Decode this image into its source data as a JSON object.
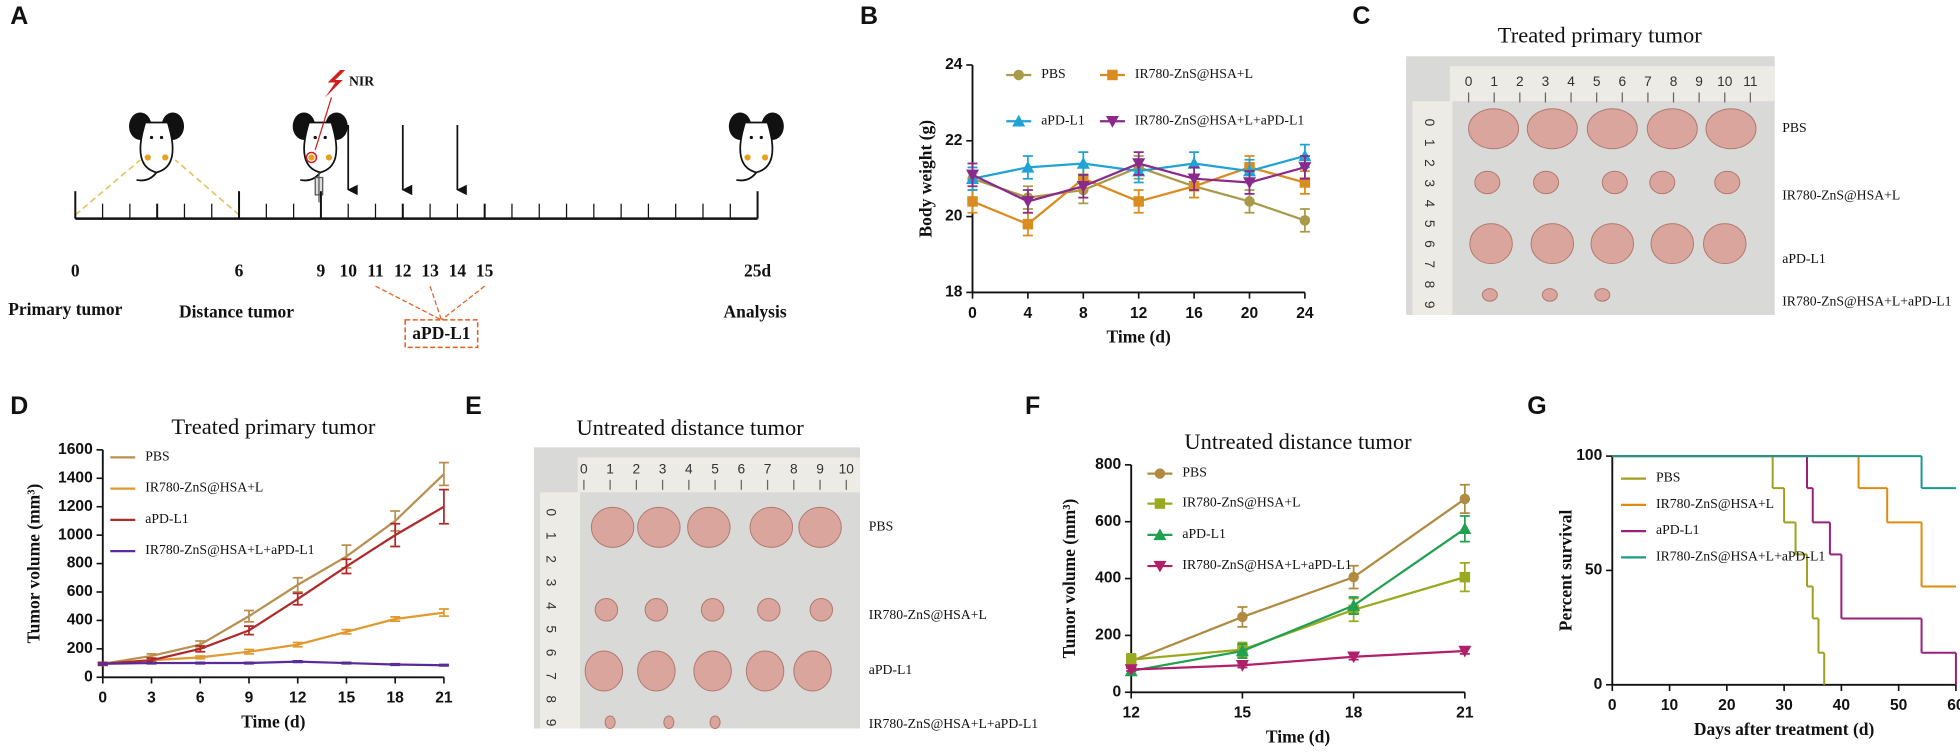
{
  "panel_labels": [
    "A",
    "B",
    "C",
    "D",
    "E",
    "F",
    "G"
  ],
  "diagram": {
    "nir": "NIR",
    "timeline_labels": [
      "0",
      "6",
      "9",
      "10",
      "11",
      "12",
      "13",
      "14",
      "15",
      "25d"
    ],
    "primary": "Primary tumor",
    "distance": "Distance tumor",
    "analysis": "Analysis",
    "treatment": "aPD-L1"
  },
  "photos": [
    {
      "title": "Treated  primary tumor",
      "row_labels": [
        "PBS",
        "IR780-ZnS@HSA+L",
        "aPD-L1",
        "IR780-ZnS@HSA+L+aPD-L1"
      ],
      "ruler_top": [
        "0",
        "1",
        "2",
        "3",
        "4",
        "5",
        "6",
        "7",
        "8",
        "9",
        "10",
        "11"
      ],
      "ruler_left": [
        "0",
        "1",
        "2",
        "3",
        "4",
        "5",
        "6",
        "7",
        "8",
        "9"
      ]
    },
    {
      "title": "Untreated distance tumor",
      "row_labels": [
        "PBS",
        "IR780-ZnS@HSA+L",
        "aPD-L1",
        "IR780-ZnS@HSA+L+aPD-L1"
      ],
      "ruler_top": [
        "0",
        "1",
        "2",
        "3",
        "4",
        "5",
        "6",
        "7",
        "8",
        "9",
        "10"
      ],
      "ruler_left": [
        "0",
        "1",
        "2",
        "3",
        "4",
        "5",
        "6",
        "7",
        "8",
        "9"
      ]
    }
  ],
  "chart_data": [
    {
      "type": "line",
      "xlabel": "Time (d)",
      "ylabel": "Body weight (g)",
      "xlim": [
        0,
        24
      ],
      "ylim": [
        18,
        24
      ],
      "xticks": [
        0,
        4,
        8,
        12,
        16,
        20,
        24
      ],
      "yticks": [
        18,
        20,
        22,
        24
      ],
      "x": [
        0,
        4,
        8,
        12,
        16,
        20,
        24
      ],
      "series": [
        {
          "name": "PBS",
          "color": "#a89a48",
          "marker": "circle",
          "values": [
            21.0,
            20.5,
            20.7,
            21.3,
            20.8,
            20.4,
            19.9
          ],
          "errors": [
            0.3,
            0.3,
            0.35,
            0.3,
            0.3,
            0.3,
            0.3
          ]
        },
        {
          "name": "IR780-ZnS@HSA+L",
          "color": "#d98c1f",
          "marker": "square",
          "values": [
            20.4,
            19.8,
            21.0,
            20.4,
            20.8,
            21.3,
            20.9
          ],
          "errors": [
            0.3,
            0.3,
            0.3,
            0.3,
            0.3,
            0.3,
            0.3
          ]
        },
        {
          "name": "aPD-L1",
          "color": "#1fa3d4",
          "marker": "triangle",
          "values": [
            21.0,
            21.3,
            21.4,
            21.2,
            21.4,
            21.2,
            21.6
          ],
          "errors": [
            0.3,
            0.3,
            0.3,
            0.3,
            0.3,
            0.3,
            0.3
          ]
        },
        {
          "name": "IR780-ZnS@HSA+L+aPD-L1",
          "color": "#8a2a8a",
          "marker": "triangle-down",
          "values": [
            21.1,
            20.4,
            20.8,
            21.4,
            21.0,
            20.9,
            21.3
          ],
          "errors": [
            0.3,
            0.3,
            0.3,
            0.3,
            0.3,
            0.3,
            0.3
          ]
        }
      ]
    },
    {
      "type": "line",
      "title": "Treated  primary tumor",
      "xlabel": "Time (d)",
      "ylabel": "Tumor volume (mm³)",
      "xlim": [
        0,
        21
      ],
      "ylim": [
        0,
        1600
      ],
      "xticks": [
        0,
        3,
        6,
        9,
        12,
        15,
        18,
        21
      ],
      "yticks": [
        0,
        200,
        400,
        600,
        800,
        1000,
        1200,
        1400,
        1600
      ],
      "x": [
        0,
        3,
        6,
        9,
        12,
        15,
        18,
        21
      ],
      "series": [
        {
          "name": "PBS",
          "color": "#b89050",
          "marker": "none",
          "values": [
            95,
            150,
            230,
            430,
            650,
            850,
            1100,
            1430
          ],
          "errors": [
            10,
            15,
            25,
            40,
            50,
            80,
            70,
            80
          ]
        },
        {
          "name": "IR780-ZnS@HSA+L",
          "color": "#e09a30",
          "marker": "none",
          "values": [
            95,
            120,
            140,
            180,
            230,
            320,
            410,
            455
          ],
          "errors": [
            10,
            10,
            10,
            15,
            15,
            15,
            15,
            25
          ]
        },
        {
          "name": "aPD-L1",
          "color": "#b02a2a",
          "marker": "none",
          "values": [
            95,
            120,
            200,
            330,
            550,
            780,
            1000,
            1200
          ],
          "errors": [
            10,
            15,
            20,
            30,
            40,
            50,
            80,
            120
          ]
        },
        {
          "name": "IR780-ZnS@HSA+L+aPD-L1",
          "color": "#5a2a9a",
          "marker": "none",
          "values": [
            95,
            100,
            100,
            100,
            110,
            100,
            90,
            85
          ],
          "errors": [
            5,
            5,
            5,
            5,
            5,
            5,
            5,
            5
          ]
        }
      ]
    },
    {
      "type": "line",
      "title": "Untreated distance tumor",
      "xlabel": "Time (d)",
      "ylabel": "Tumor volume (mm³)",
      "xlim": [
        12,
        21
      ],
      "ylim": [
        0,
        800
      ],
      "xticks": [
        12,
        15,
        18,
        21
      ],
      "yticks": [
        0,
        200,
        400,
        600,
        800
      ],
      "x": [
        12,
        15,
        18,
        21
      ],
      "series": [
        {
          "name": "PBS",
          "color": "#b08a40",
          "marker": "circle",
          "values": [
            110,
            265,
            405,
            680
          ],
          "errors": [
            20,
            35,
            40,
            50
          ]
        },
        {
          "name": "IR780-ZnS@HSA+L",
          "color": "#9aaa20",
          "marker": "square",
          "values": [
            115,
            150,
            290,
            405
          ],
          "errors": [
            20,
            25,
            40,
            50
          ]
        },
        {
          "name": "aPD-L1",
          "color": "#20a050",
          "marker": "triangle",
          "values": [
            75,
            145,
            305,
            575
          ],
          "errors": [
            10,
            25,
            30,
            45
          ]
        },
        {
          "name": "IR780-ZnS@HSA+L+aPD-L1",
          "color": "#b0206a",
          "marker": "triangle-down",
          "values": [
            80,
            95,
            125,
            145
          ],
          "errors": [
            5,
            8,
            10,
            10
          ]
        }
      ]
    },
    {
      "type": "step",
      "xlabel": "Days after treatment (d)",
      "ylabel": "Percent survival",
      "xlim": [
        0,
        60
      ],
      "ylim": [
        0,
        100
      ],
      "xticks": [
        0,
        10,
        20,
        30,
        40,
        50,
        60
      ],
      "yticks": [
        0,
        50,
        100
      ],
      "series": [
        {
          "name": "PBS",
          "color": "#a0a020",
          "x": [
            0,
            28,
            30,
            32,
            34,
            35,
            36,
            37
          ],
          "values": [
            100,
            86,
            71,
            57,
            43,
            29,
            14,
            0
          ]
        },
        {
          "name": "IR780-ZnS@HSA+L",
          "color": "#e08a10",
          "x": [
            0,
            43,
            48,
            54,
            60
          ],
          "values": [
            100,
            86,
            71,
            43,
            43
          ]
        },
        {
          "name": "aPD-L1",
          "color": "#9a207a",
          "x": [
            0,
            34,
            35,
            38,
            40,
            54,
            60
          ],
          "values": [
            100,
            86,
            71,
            57,
            29,
            14,
            0
          ]
        },
        {
          "name": "IR780-ZnS@HSA+L+aPD-L1",
          "color": "#1a9a8a",
          "x": [
            0,
            54,
            60
          ],
          "values": [
            100,
            86,
            86
          ]
        }
      ]
    }
  ]
}
